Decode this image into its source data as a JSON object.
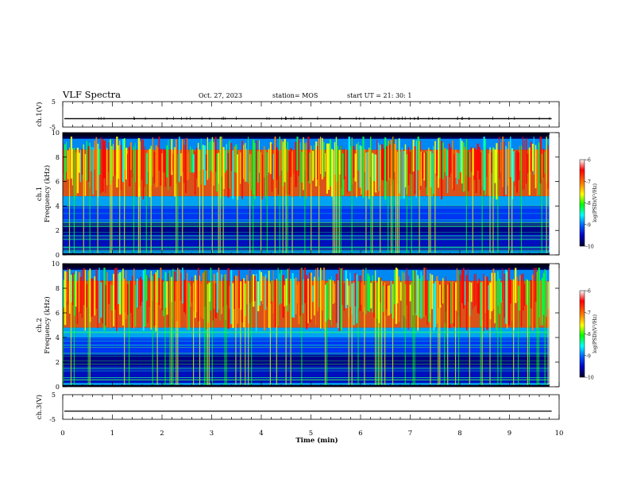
{
  "header": {
    "title": "VLF Spectra",
    "date": "Oct. 27, 2023",
    "station": "station= MOS",
    "start_ut": "start  UT =   21: 30: 1"
  },
  "chart_data": [
    {
      "type": "line",
      "panel": "ch1-waveform",
      "ylabel": "ch.1(V)",
      "ylim": [
        -5,
        5
      ],
      "y_ticks": [
        "5",
        "-5"
      ],
      "xlim": [
        0,
        10
      ],
      "baseline": -1.7
    },
    {
      "type": "heatmap",
      "panel": "ch1-spectrogram",
      "ylabel_line1": "ch.1",
      "ylabel_line2": "Frequency (kHz)",
      "ylim": [
        0,
        10
      ],
      "y_ticks": [
        "0",
        "2",
        "4",
        "6",
        "8",
        "10"
      ],
      "xlim": [
        0,
        10
      ],
      "data_end_min": 9.8,
      "colorbar": {
        "label": "log(PSD)(V²/Hz)",
        "range": [
          -10,
          -6
        ],
        "ticks": [
          "-6",
          "-7",
          "-8",
          "-9",
          "-10"
        ],
        "colors": [
          "#ffffff",
          "#ff0000",
          "#ff8000",
          "#ffff00",
          "#00ff00",
          "#00ffff",
          "#0060ff",
          "#0000c0",
          "#000030"
        ]
      }
    },
    {
      "type": "heatmap",
      "panel": "ch2-spectrogram",
      "ylabel_line1": "ch.2",
      "ylabel_line2": "Frequency (kHz)",
      "ylim": [
        0,
        10
      ],
      "y_ticks": [
        "0",
        "2",
        "4",
        "6",
        "8",
        "10"
      ],
      "xlim": [
        0,
        10
      ],
      "data_end_min": 9.8,
      "colorbar": {
        "label": "log(PSD)(V²/Hz)",
        "range": [
          -10,
          -6
        ],
        "ticks": [
          "-6",
          "-7",
          "-8",
          "-9",
          "-10"
        ],
        "colors": [
          "#ffffff",
          "#ff0000",
          "#ff8000",
          "#ffff00",
          "#00ff00",
          "#00ffff",
          "#0060ff",
          "#0000c0",
          "#000030"
        ]
      }
    },
    {
      "type": "line",
      "panel": "ch2-waveform",
      "ylabel": "ch.3(V)",
      "ylim": [
        -5,
        5
      ],
      "y_ticks": [
        "5",
        "-5"
      ],
      "xlim": [
        0,
        10
      ],
      "baseline": -1.7
    }
  ],
  "x_axis": {
    "label": "Time (min)",
    "ticks": [
      "0",
      "1",
      "2",
      "3",
      "4",
      "5",
      "6",
      "7",
      "8",
      "9",
      "10"
    ]
  }
}
